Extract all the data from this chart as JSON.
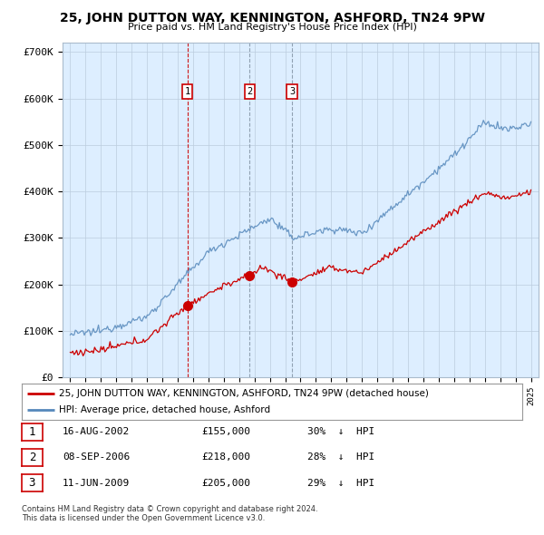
{
  "title": "25, JOHN DUTTON WAY, KENNINGTON, ASHFORD, TN24 9PW",
  "subtitle": "Price paid vs. HM Land Registry's House Price Index (HPI)",
  "ylabel_ticks": [
    "£0",
    "£100K",
    "£200K",
    "£300K",
    "£400K",
    "£500K",
    "£600K",
    "£700K"
  ],
  "ytick_vals": [
    0,
    100000,
    200000,
    300000,
    400000,
    500000,
    600000,
    700000
  ],
  "ylim": [
    0,
    720000
  ],
  "xlim_start": 1994.5,
  "xlim_end": 2025.5,
  "legend_label_red": "25, JOHN DUTTON WAY, KENNINGTON, ASHFORD, TN24 9PW (detached house)",
  "legend_label_blue": "HPI: Average price, detached house, Ashford",
  "transactions": [
    {
      "num": 1,
      "date": "16-AUG-2002",
      "price": 155000,
      "pct": "30%",
      "dir": "↓",
      "year": 2002.62
    },
    {
      "num": 2,
      "date": "08-SEP-2006",
      "price": 218000,
      "pct": "28%",
      "dir": "↓",
      "year": 2006.69
    },
    {
      "num": 3,
      "date": "11-JUN-2009",
      "price": 205000,
      "pct": "29%",
      "dir": "↓",
      "year": 2009.44
    }
  ],
  "footnote1": "Contains HM Land Registry data © Crown copyright and database right 2024.",
  "footnote2": "This data is licensed under the Open Government Licence v3.0.",
  "color_red": "#cc0000",
  "color_blue": "#5588bb",
  "bg_chart": "#ddeeff",
  "background_color": "#ffffff",
  "grid_color": "#bbccdd"
}
